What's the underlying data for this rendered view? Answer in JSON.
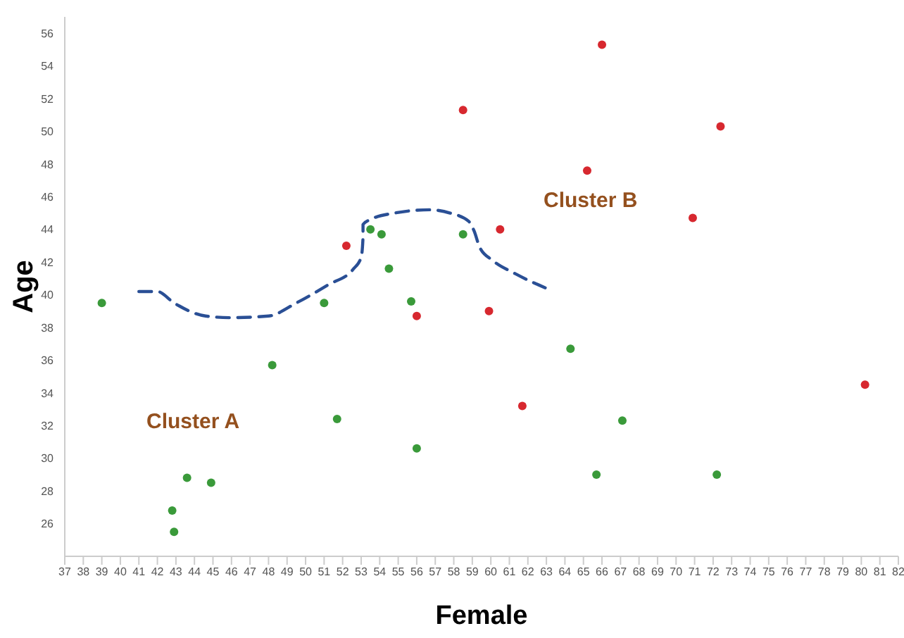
{
  "chart_data": {
    "type": "scatter",
    "xlabel": "Female",
    "ylabel": "Age",
    "xlim": [
      37,
      82
    ],
    "xticks": [
      37,
      38,
      39,
      40,
      41,
      42,
      43,
      44,
      45,
      46,
      47,
      48,
      49,
      50,
      51,
      52,
      53,
      54,
      55,
      56,
      57,
      58,
      59,
      60,
      61,
      62,
      63,
      64,
      65,
      66,
      67,
      68,
      69,
      70,
      71,
      72,
      73,
      74,
      75,
      76,
      77,
      78,
      79,
      80,
      81,
      82
    ],
    "ylim": [
      24,
      57
    ],
    "yticks": [
      26,
      28,
      30,
      32,
      34,
      36,
      38,
      40,
      42,
      44,
      46,
      48,
      50,
      52,
      54,
      56
    ],
    "grid": false,
    "marker": "circle",
    "series": [
      {
        "color": "#3a9a3a",
        "x": [
          39.0,
          51.0,
          53.5,
          54.1,
          54.5,
          55.7,
          58.5,
          48.2,
          51.7,
          56.0,
          43.6,
          44.9,
          42.8,
          42.9,
          64.3,
          67.1,
          65.7,
          72.2
        ],
        "values": [
          39.5,
          39.5,
          44.0,
          43.7,
          41.6,
          39.6,
          43.7,
          35.7,
          32.4,
          30.6,
          28.8,
          28.5,
          26.8,
          25.5,
          36.7,
          32.3,
          29.0,
          29.0
        ]
      },
      {
        "color": "#d7282f",
        "x": [
          52.2,
          58.5,
          56.0,
          66.0,
          72.4,
          65.2,
          70.9,
          60.5,
          59.9,
          61.7,
          80.2
        ],
        "values": [
          43.0,
          51.3,
          38.7,
          55.3,
          50.3,
          47.6,
          44.7,
          44.0,
          39.0,
          33.2,
          34.5
        ]
      },
      {
        "type": "line",
        "line_style": "dashed",
        "marker": "none",
        "color": "#2a4f95",
        "x": [
          41.0,
          42.0,
          42.9,
          44.6,
          45.9,
          48.0,
          49.5,
          51.2,
          52.6,
          53.0,
          53.1,
          53.1,
          53.5,
          54.8,
          56.7,
          57.8,
          58.8,
          59.1,
          59.4,
          60.1,
          61.3,
          63.2
        ],
        "values": [
          40.2,
          40.2,
          39.5,
          38.7,
          38.6,
          38.7,
          39.5,
          40.6,
          41.6,
          42.3,
          43.5,
          44.3,
          44.6,
          45.0,
          45.2,
          45.0,
          44.5,
          43.9,
          42.9,
          42.1,
          41.3,
          40.3
        ]
      }
    ],
    "annotations": [
      "Cluster A",
      "Cluster B"
    ]
  }
}
